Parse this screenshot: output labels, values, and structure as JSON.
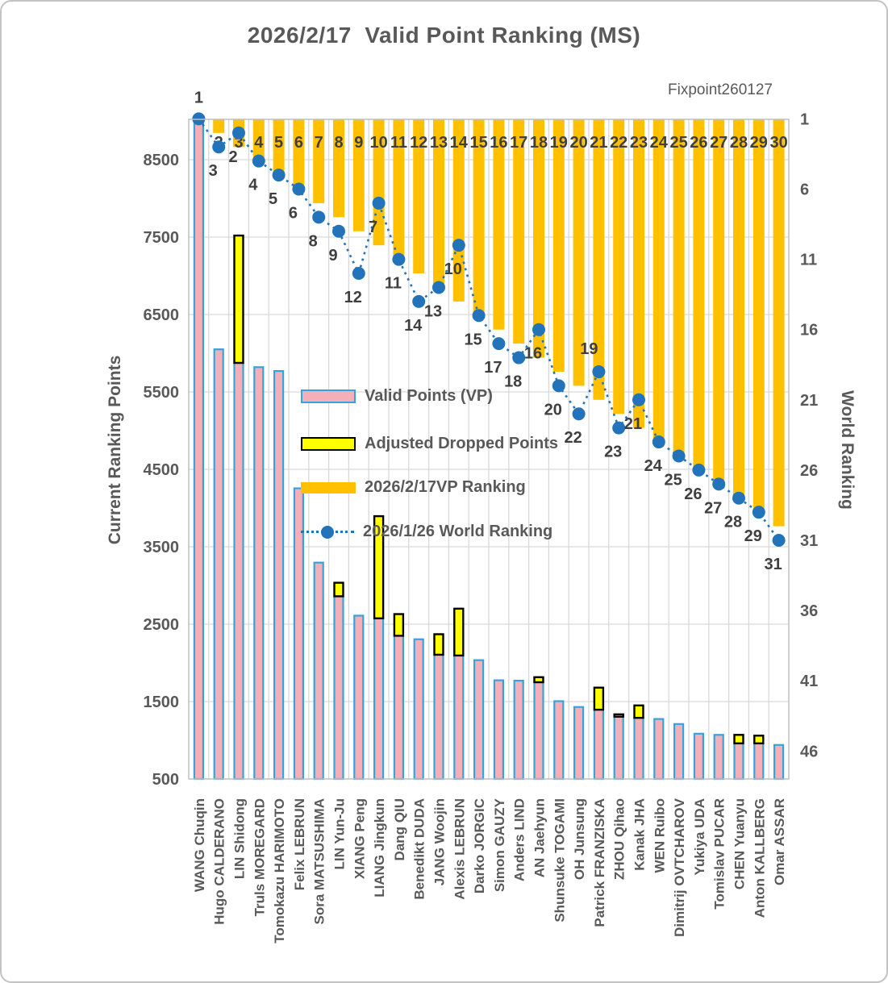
{
  "chart_data": {
    "type": "combo",
    "title": "2026/2/17  Valid Point Ranking (MS)",
    "annotation": "Fixpoint260127",
    "categories": [
      "WANG Chuqin",
      "Hugo CALDERANO",
      "LIN Shidong",
      "Truls MOREGARD",
      "Tomokazu HARIMOTO",
      "Felix LEBRUN",
      "Sora MATSUSHIMA",
      "LIN Yun-Ju",
      "XIANG Peng",
      "LIANG Jingkun",
      "Dang QIU",
      "Benedikt DUDA",
      "JANG Woojin",
      "Alexis LEBRUN",
      "Darko JORGIC",
      "Simon GAUZY",
      "Anders LIND",
      "AN Jaehyun",
      "Shunsuke TOGAMI",
      "OH Junsung",
      "Patrick FRANZISKA",
      "ZHOU Qihao",
      "Kanak JHA",
      "WEN Ruibo",
      "Dimitrij OVTCHAROV",
      "Yukiya UDA",
      "Tomislav PUCAR",
      "CHEN Yuanyu",
      "Anton KALLBERG",
      "Omar ASSAR"
    ],
    "series": [
      {
        "name": "Valid Points (VP)",
        "type": "bar",
        "axis": "left",
        "fill": "#f5afb8",
        "stroke": "#35a3dc",
        "values": [
          8980,
          6050,
          5875,
          5820,
          5770,
          4255,
          3295,
          2860,
          2610,
          2575,
          2350,
          2305,
          2105,
          2095,
          2035,
          1775,
          1770,
          1750,
          1505,
          1430,
          1395,
          1305,
          1290,
          1275,
          1210,
          1085,
          1070,
          960,
          960,
          940
        ]
      },
      {
        "name": "Adjusted Dropped Points",
        "type": "bar-stacked-on-vp",
        "axis": "left",
        "fill": "#ffff00",
        "stroke": "#000000",
        "values": [
          0,
          0,
          1645,
          0,
          0,
          0,
          0,
          175,
          0,
          1320,
          280,
          0,
          265,
          605,
          0,
          0,
          0,
          65,
          0,
          0,
          285,
          30,
          160,
          0,
          0,
          0,
          0,
          110,
          100,
          0
        ]
      },
      {
        "name": "2026/2/17VP Ranking",
        "type": "bar-hanging-from-top",
        "axis": "right",
        "fill": "#ffc000",
        "values": [
          1,
          2,
          3,
          4,
          5,
          6,
          7,
          8,
          9,
          10,
          11,
          12,
          13,
          14,
          15,
          16,
          17,
          18,
          19,
          20,
          21,
          22,
          23,
          24,
          25,
          26,
          27,
          28,
          29,
          30
        ]
      },
      {
        "name": "2026/1/26 World Ranking",
        "type": "line-dot",
        "axis": "right",
        "color": "#2273b9",
        "values": [
          1,
          3,
          2,
          4,
          5,
          6,
          8,
          9,
          12,
          7,
          11,
          14,
          13,
          10,
          15,
          17,
          18,
          16,
          20,
          22,
          19,
          23,
          21,
          24,
          25,
          26,
          27,
          28,
          29,
          31
        ]
      }
    ],
    "left_axis": {
      "title": "Current Ranking Points",
      "ticks": [
        8500,
        7500,
        6500,
        5500,
        4500,
        3500,
        2500,
        1500,
        500
      ],
      "min": 500,
      "max": 9020
    },
    "right_axis": {
      "title": "World Ranking",
      "ticks": [
        1,
        6,
        11,
        16,
        21,
        26,
        31,
        36,
        41,
        46
      ],
      "top_value": 1,
      "inverted": true
    },
    "grid": true,
    "legend_position": "middle-left-inside",
    "colors": {
      "vp_fill": "#f5afb8",
      "vp_border": "#35a3dc",
      "dropped_fill": "#ffff00",
      "dropped_border": "#000000",
      "rank_bar": "#ffc000",
      "world_line": "#2273b9",
      "text_gray": "#595959",
      "label_dark": "#3f3f3f",
      "gridline": "#d9d9d9"
    }
  }
}
